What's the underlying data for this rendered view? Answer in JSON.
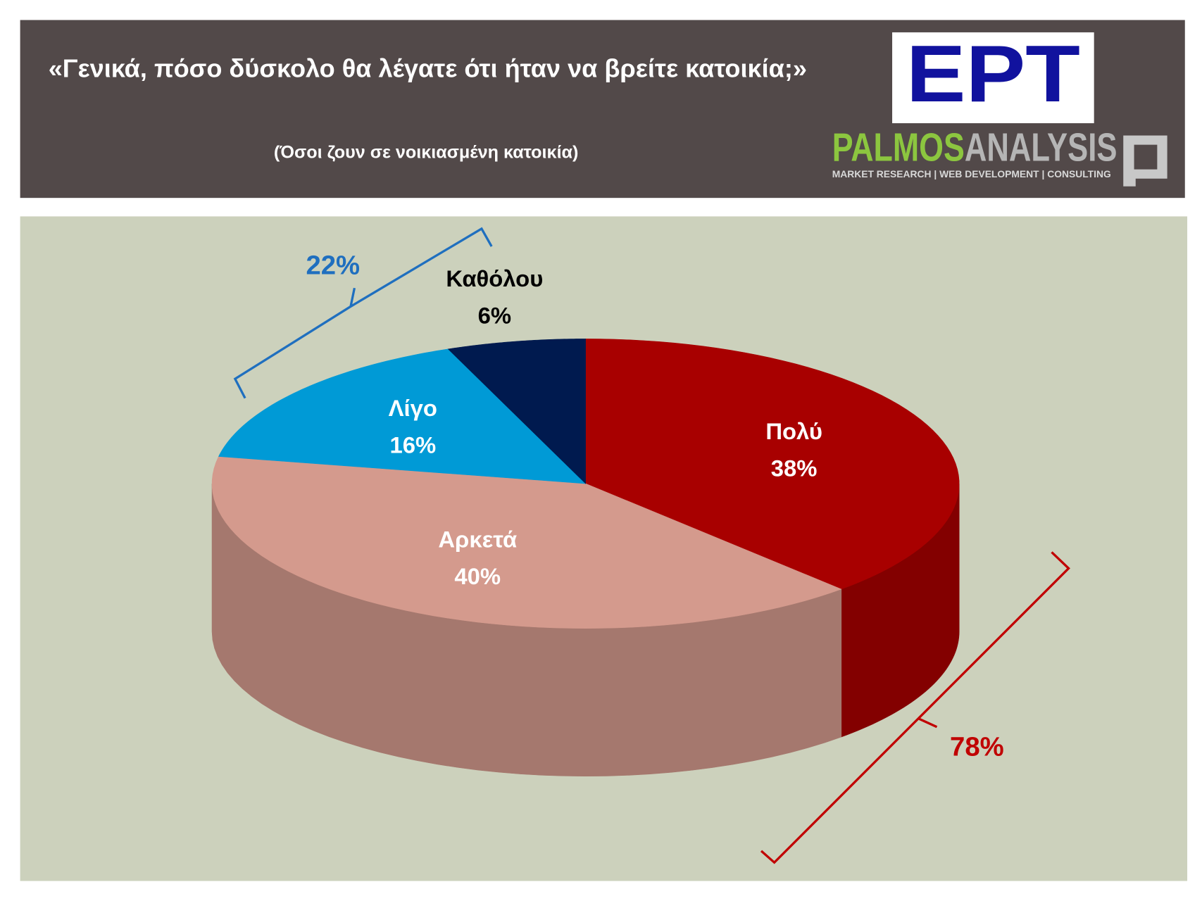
{
  "chart_data": {
    "type": "pie3d",
    "title": "«Γενικά, πόσο δύσκολο θα λέγατε ότι ήταν να βρείτε κατοικία;»",
    "subtitle": "(Όσοι ζουν σε νοικιασμένη κατοικία)",
    "categories": [
      "Πολύ",
      "Αρκετά",
      "Λίγο",
      "Καθόλου"
    ],
    "values": [
      38,
      40,
      16,
      6
    ],
    "value_labels": [
      "38%",
      "40%",
      "16%",
      "6%"
    ],
    "colors": [
      "#a80000",
      "#d49a8d",
      "#009ad6",
      "#001a4f"
    ],
    "label_colors": [
      "#ffffff",
      "#ffffff",
      "#ffffff",
      "#000000"
    ],
    "annotations": [
      "22%",
      "78%"
    ]
  },
  "logo": {
    "brand": "ΕΡΤ",
    "company_a": "PALMOS",
    "company_b": "ANALYSIS",
    "tagline": "MARKET RESEARCH | WEB DEVELOPMENT | CONSULTING"
  }
}
